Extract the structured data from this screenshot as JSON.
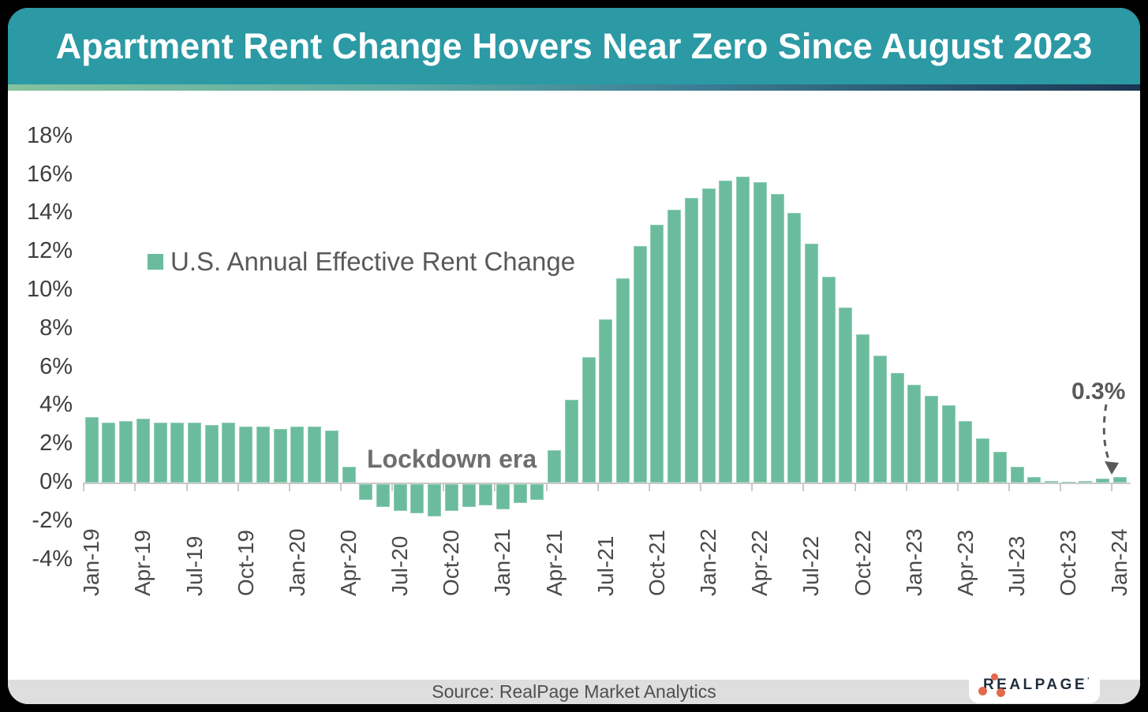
{
  "header": {
    "title": "Apartment Rent Change Hovers Near Zero Since August 2023"
  },
  "legend": {
    "label": "U.S. Annual Effective Rent Change",
    "swatch_color": "#6abc9c"
  },
  "annotations": {
    "lockdown_label": "Lockdown era",
    "last_value_label": "0.3%"
  },
  "footer": {
    "source": "Source: RealPage Market Analytics"
  },
  "logo": {
    "text": "REALPAGE",
    "trademark": "'",
    "dots_color": "#e4694b",
    "text_color": "#1f2d3d"
  },
  "colors": {
    "header_teal": "#2b9aa5",
    "bar_green": "#6abc9c",
    "axis_gray": "#c9c9c9",
    "gradient_left": "#85c29e",
    "gradient_right": "#1c3552"
  },
  "chart_data": {
    "type": "bar",
    "title": "Apartment Rent Change Hovers Near Zero Since August 2023",
    "series_name": "U.S. Annual Effective Rent Change",
    "xlabel": "",
    "ylabel": "",
    "ylim": [
      -4,
      18
    ],
    "ytick_step": 2,
    "ytick_values": [
      18,
      16,
      14,
      12,
      10,
      8,
      6,
      4,
      2,
      0,
      -2,
      -4
    ],
    "ytick_suffix": "%",
    "x_tick_label_every": 3,
    "grid": false,
    "legend_position": "upper-left-inside",
    "categories": [
      "Jan-19",
      "Feb-19",
      "Mar-19",
      "Apr-19",
      "May-19",
      "Jun-19",
      "Jul-19",
      "Aug-19",
      "Sep-19",
      "Oct-19",
      "Nov-19",
      "Dec-19",
      "Jan-20",
      "Feb-20",
      "Mar-20",
      "Apr-20",
      "May-20",
      "Jun-20",
      "Jul-20",
      "Aug-20",
      "Sep-20",
      "Oct-20",
      "Nov-20",
      "Dec-20",
      "Jan-21",
      "Feb-21",
      "Mar-21",
      "Apr-21",
      "May-21",
      "Jun-21",
      "Jul-21",
      "Aug-21",
      "Sep-21",
      "Oct-21",
      "Nov-21",
      "Dec-21",
      "Jan-22",
      "Feb-22",
      "Mar-22",
      "Apr-22",
      "May-22",
      "Jun-22",
      "Jul-22",
      "Aug-22",
      "Sep-22",
      "Oct-22",
      "Nov-22",
      "Dec-22",
      "Jan-23",
      "Feb-23",
      "Mar-23",
      "Apr-23",
      "May-23",
      "Jun-23",
      "Jul-23",
      "Aug-23",
      "Sep-23",
      "Oct-23",
      "Nov-23",
      "Dec-23",
      "Jan-24"
    ],
    "values": [
      3.4,
      3.1,
      3.2,
      3.3,
      3.1,
      3.1,
      3.1,
      3.0,
      3.1,
      2.9,
      2.9,
      2.8,
      2.9,
      2.9,
      2.7,
      0.8,
      -0.8,
      -1.2,
      -1.4,
      -1.5,
      -1.7,
      -1.4,
      -1.2,
      -1.1,
      -1.3,
      -1.0,
      -0.8,
      1.7,
      4.3,
      6.5,
      8.5,
      10.6,
      12.3,
      13.4,
      14.2,
      14.8,
      15.3,
      15.7,
      15.9,
      15.6,
      15.0,
      14.0,
      12.4,
      10.7,
      9.1,
      7.7,
      6.6,
      5.7,
      5.1,
      4.5,
      4.0,
      3.2,
      2.3,
      1.6,
      0.8,
      0.3,
      0.1,
      0.05,
      0.1,
      0.2,
      0.3
    ]
  }
}
